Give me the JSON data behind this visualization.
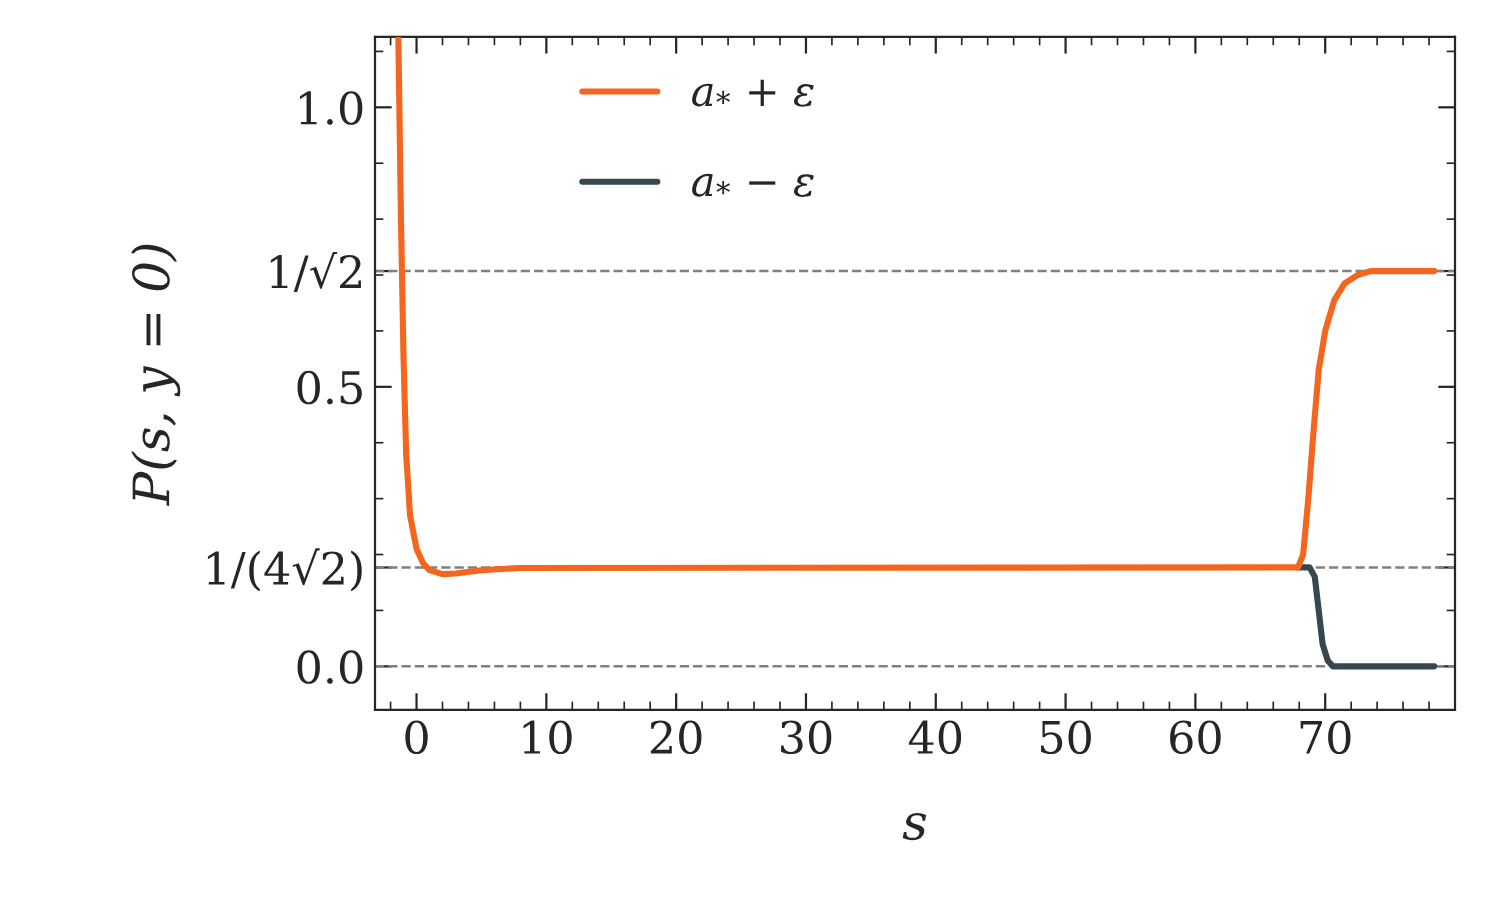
{
  "chart_data": {
    "type": "line",
    "xlabel": "s",
    "ylabel": "P(s, y = 0)",
    "xlim": [
      -3.2,
      80
    ],
    "xticks": [
      0,
      10,
      20,
      30,
      40,
      50,
      60,
      70
    ],
    "ylim": [
      -0.078,
      1.126
    ],
    "yticks": [
      {
        "value": 0.0,
        "label": "0.0"
      },
      {
        "value": 0.1768,
        "label": "1/(4√2)"
      },
      {
        "value": 0.5,
        "label": "0.5"
      },
      {
        "value": 0.7071,
        "label": "1/√2"
      },
      {
        "value": 1.0,
        "label": "1.0"
      }
    ],
    "grid": false,
    "legend": "top",
    "line_style": "solid",
    "marker": "none",
    "ref_lines": [
      {
        "axis": "y",
        "value": 0.0,
        "color": "#808080",
        "line_style": "dashed"
      },
      {
        "axis": "y",
        "value": 0.1768,
        "color": "#808080",
        "line_style": "dashed"
      },
      {
        "axis": "y",
        "value": 0.7071,
        "color": "#808080",
        "line_style": "dashed"
      }
    ],
    "series": [
      {
        "name": "a$_{*}$ + ε",
        "color": "#f4651e",
        "x": [
          -1.4,
          -1.2,
          -1.0,
          -0.8,
          -0.5,
          0,
          0.5,
          1,
          2,
          3,
          5,
          8,
          67.9,
          68.3,
          68.7,
          69.1,
          69.5,
          70,
          70.7,
          71.5,
          72.5,
          73.5,
          78.4
        ],
        "values": [
          1.126,
          0.8,
          0.55,
          0.38,
          0.27,
          0.21,
          0.185,
          0.172,
          0.165,
          0.166,
          0.172,
          0.176,
          0.177,
          0.2,
          0.3,
          0.42,
          0.53,
          0.6,
          0.655,
          0.685,
          0.7,
          0.707,
          0.707
        ]
      },
      {
        "name": "a$_{*}$ − ε",
        "color": "#37474f",
        "x": [
          67.9,
          68.8,
          69.2,
          69.5,
          69.8,
          70.2,
          70.6,
          78.4
        ],
        "values": [
          0.177,
          0.177,
          0.16,
          0.1,
          0.04,
          0.01,
          0.0,
          0.0
        ]
      }
    ]
  }
}
